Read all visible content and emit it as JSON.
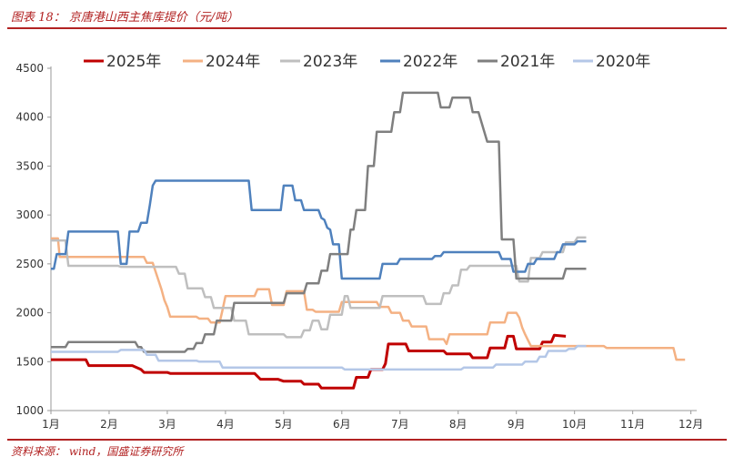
{
  "caption": "图表 18： 京唐港山西主焦库提价（元/吨）",
  "source": "资料来源： wind，国盛证券研究所",
  "chart_data": {
    "type": "line",
    "title": "图表 18： 京唐港山西主焦库提价（元/吨）",
    "xlabel": "",
    "ylabel": "",
    "x_ticks": [
      "1月",
      "2月",
      "3月",
      "4月",
      "5月",
      "6月",
      "7月",
      "8月",
      "9月",
      "10月",
      "11月",
      "12月"
    ],
    "y_ticks": [
      "1000",
      "1500",
      "2000",
      "2500",
      "3000",
      "3500",
      "4000",
      "4500"
    ],
    "ylim": [
      1000,
      4500
    ],
    "xlim": [
      1,
      12.1
    ],
    "grid": false,
    "legend_position": "top",
    "series": [
      {
        "name": "2025年",
        "color": "#c00000",
        "points": [
          [
            1.0,
            1520
          ],
          [
            1.6,
            1520
          ],
          [
            1.65,
            1460
          ],
          [
            2.4,
            1460
          ],
          [
            2.55,
            1420
          ],
          [
            2.6,
            1390
          ],
          [
            3.0,
            1390
          ],
          [
            3.05,
            1380
          ],
          [
            4.5,
            1380
          ],
          [
            4.6,
            1320
          ],
          [
            4.9,
            1320
          ],
          [
            5.0,
            1300
          ],
          [
            5.3,
            1300
          ],
          [
            5.35,
            1270
          ],
          [
            5.6,
            1270
          ],
          [
            5.65,
            1230
          ],
          [
            6.2,
            1230
          ],
          [
            6.25,
            1340
          ],
          [
            6.45,
            1340
          ],
          [
            6.5,
            1420
          ],
          [
            6.7,
            1420
          ],
          [
            6.75,
            1480
          ],
          [
            6.8,
            1680
          ],
          [
            7.1,
            1680
          ],
          [
            7.15,
            1610
          ],
          [
            7.75,
            1610
          ],
          [
            7.8,
            1580
          ],
          [
            8.2,
            1580
          ],
          [
            8.25,
            1540
          ],
          [
            8.5,
            1540
          ],
          [
            8.55,
            1640
          ],
          [
            8.8,
            1640
          ],
          [
            8.85,
            1760
          ],
          [
            8.95,
            1760
          ],
          [
            9.0,
            1630
          ],
          [
            9.4,
            1630
          ],
          [
            9.45,
            1700
          ],
          [
            9.6,
            1700
          ],
          [
            9.65,
            1770
          ],
          [
            9.85,
            1760
          ]
        ]
      },
      {
        "name": "2024年",
        "color": "#f4b183",
        "points": [
          [
            1.0,
            2760
          ],
          [
            1.12,
            2760
          ],
          [
            1.15,
            2570
          ],
          [
            2.6,
            2570
          ],
          [
            2.65,
            2510
          ],
          [
            2.75,
            2510
          ],
          [
            2.8,
            2420
          ],
          [
            2.85,
            2330
          ],
          [
            2.9,
            2240
          ],
          [
            2.95,
            2130
          ],
          [
            3.0,
            2060
          ],
          [
            3.05,
            1960
          ],
          [
            3.5,
            1960
          ],
          [
            3.55,
            1940
          ],
          [
            3.7,
            1940
          ],
          [
            3.75,
            1900
          ],
          [
            3.9,
            1900
          ],
          [
            3.95,
            2030
          ],
          [
            4.0,
            2170
          ],
          [
            4.5,
            2170
          ],
          [
            4.55,
            2240
          ],
          [
            4.75,
            2240
          ],
          [
            4.8,
            2080
          ],
          [
            5.0,
            2080
          ],
          [
            5.05,
            2220
          ],
          [
            5.35,
            2220
          ],
          [
            5.4,
            2030
          ],
          [
            5.5,
            2030
          ],
          [
            5.55,
            2010
          ],
          [
            5.95,
            2010
          ],
          [
            6.0,
            2110
          ],
          [
            6.6,
            2110
          ],
          [
            6.65,
            2060
          ],
          [
            6.8,
            2060
          ],
          [
            6.85,
            2000
          ],
          [
            7.0,
            2000
          ],
          [
            7.05,
            1920
          ],
          [
            7.15,
            1920
          ],
          [
            7.2,
            1860
          ],
          [
            7.45,
            1860
          ],
          [
            7.5,
            1730
          ],
          [
            7.75,
            1730
          ],
          [
            7.8,
            1680
          ],
          [
            7.85,
            1780
          ],
          [
            8.5,
            1780
          ],
          [
            8.55,
            1900
          ],
          [
            8.8,
            1900
          ],
          [
            8.85,
            2000
          ],
          [
            9.0,
            2000
          ],
          [
            9.05,
            1950
          ],
          [
            9.1,
            1850
          ],
          [
            9.15,
            1780
          ],
          [
            9.2,
            1720
          ],
          [
            9.25,
            1660
          ],
          [
            10.5,
            1660
          ],
          [
            10.55,
            1640
          ],
          [
            11.7,
            1640
          ],
          [
            11.75,
            1520
          ],
          [
            11.9,
            1520
          ]
        ]
      },
      {
        "name": "2023年",
        "color": "#bfbfbf",
        "points": [
          [
            1.0,
            2740
          ],
          [
            1.25,
            2740
          ],
          [
            1.3,
            2480
          ],
          [
            2.15,
            2480
          ],
          [
            2.2,
            2470
          ],
          [
            3.15,
            2470
          ],
          [
            3.2,
            2400
          ],
          [
            3.3,
            2400
          ],
          [
            3.35,
            2250
          ],
          [
            3.6,
            2250
          ],
          [
            3.65,
            2160
          ],
          [
            3.75,
            2160
          ],
          [
            3.8,
            2050
          ],
          [
            4.1,
            2050
          ],
          [
            4.15,
            1920
          ],
          [
            4.35,
            1920
          ],
          [
            4.4,
            1780
          ],
          [
            5.0,
            1780
          ],
          [
            5.05,
            1750
          ],
          [
            5.3,
            1750
          ],
          [
            5.35,
            1820
          ],
          [
            5.45,
            1820
          ],
          [
            5.5,
            1920
          ],
          [
            5.6,
            1920
          ],
          [
            5.65,
            1830
          ],
          [
            5.75,
            1830
          ],
          [
            5.8,
            1980
          ],
          [
            6.0,
            1980
          ],
          [
            6.05,
            2170
          ],
          [
            6.1,
            2170
          ],
          [
            6.15,
            2050
          ],
          [
            6.65,
            2050
          ],
          [
            6.7,
            2170
          ],
          [
            7.4,
            2170
          ],
          [
            7.45,
            2090
          ],
          [
            7.7,
            2090
          ],
          [
            7.75,
            2200
          ],
          [
            7.85,
            2200
          ],
          [
            7.9,
            2280
          ],
          [
            8.0,
            2280
          ],
          [
            8.05,
            2440
          ],
          [
            8.15,
            2440
          ],
          [
            8.2,
            2480
          ],
          [
            9.0,
            2480
          ],
          [
            9.05,
            2320
          ],
          [
            9.2,
            2320
          ],
          [
            9.25,
            2560
          ],
          [
            9.4,
            2560
          ],
          [
            9.45,
            2620
          ],
          [
            9.8,
            2620
          ],
          [
            9.85,
            2720
          ],
          [
            10.0,
            2720
          ],
          [
            10.05,
            2770
          ],
          [
            10.2,
            2770
          ]
        ]
      },
      {
        "name": "2022年",
        "color": "#4f81bd",
        "points": [
          [
            1.0,
            2450
          ],
          [
            1.05,
            2450
          ],
          [
            1.1,
            2600
          ],
          [
            1.25,
            2600
          ],
          [
            1.3,
            2830
          ],
          [
            2.15,
            2830
          ],
          [
            2.2,
            2500
          ],
          [
            2.3,
            2500
          ],
          [
            2.35,
            2830
          ],
          [
            2.5,
            2830
          ],
          [
            2.55,
            2920
          ],
          [
            2.65,
            2920
          ],
          [
            2.7,
            3100
          ],
          [
            2.75,
            3300
          ],
          [
            2.8,
            3350
          ],
          [
            4.4,
            3350
          ],
          [
            4.45,
            3050
          ],
          [
            4.95,
            3050
          ],
          [
            5.0,
            3300
          ],
          [
            5.15,
            3300
          ],
          [
            5.2,
            3150
          ],
          [
            5.3,
            3150
          ],
          [
            5.35,
            3050
          ],
          [
            5.6,
            3050
          ],
          [
            5.65,
            2970
          ],
          [
            5.7,
            2950
          ],
          [
            5.75,
            2870
          ],
          [
            5.8,
            2850
          ],
          [
            5.85,
            2700
          ],
          [
            5.95,
            2700
          ],
          [
            6.0,
            2350
          ],
          [
            6.65,
            2350
          ],
          [
            6.7,
            2500
          ],
          [
            6.95,
            2500
          ],
          [
            7.0,
            2550
          ],
          [
            7.55,
            2550
          ],
          [
            7.6,
            2580
          ],
          [
            7.7,
            2580
          ],
          [
            7.75,
            2620
          ],
          [
            8.7,
            2620
          ],
          [
            8.75,
            2550
          ],
          [
            8.9,
            2550
          ],
          [
            8.95,
            2420
          ],
          [
            9.15,
            2420
          ],
          [
            9.2,
            2500
          ],
          [
            9.3,
            2500
          ],
          [
            9.35,
            2550
          ],
          [
            9.65,
            2550
          ],
          [
            9.7,
            2620
          ],
          [
            9.75,
            2620
          ],
          [
            9.8,
            2700
          ],
          [
            10.0,
            2700
          ],
          [
            10.05,
            2730
          ],
          [
            10.2,
            2730
          ]
        ]
      },
      {
        "name": "2021年",
        "color": "#7f7f7f",
        "points": [
          [
            1.0,
            1650
          ],
          [
            1.25,
            1650
          ],
          [
            1.3,
            1700
          ],
          [
            2.45,
            1700
          ],
          [
            2.5,
            1650
          ],
          [
            2.55,
            1650
          ],
          [
            2.6,
            1600
          ],
          [
            3.3,
            1600
          ],
          [
            3.35,
            1630
          ],
          [
            3.45,
            1630
          ],
          [
            3.5,
            1690
          ],
          [
            3.6,
            1690
          ],
          [
            3.65,
            1780
          ],
          [
            3.8,
            1780
          ],
          [
            3.85,
            1920
          ],
          [
            4.1,
            1920
          ],
          [
            4.15,
            2100
          ],
          [
            5.0,
            2100
          ],
          [
            5.05,
            2200
          ],
          [
            5.35,
            2200
          ],
          [
            5.4,
            2300
          ],
          [
            5.6,
            2300
          ],
          [
            5.65,
            2430
          ],
          [
            5.75,
            2430
          ],
          [
            5.8,
            2600
          ],
          [
            6.1,
            2600
          ],
          [
            6.15,
            2850
          ],
          [
            6.2,
            2850
          ],
          [
            6.25,
            3050
          ],
          [
            6.4,
            3050
          ],
          [
            6.45,
            3500
          ],
          [
            6.55,
            3500
          ],
          [
            6.6,
            3850
          ],
          [
            6.85,
            3850
          ],
          [
            6.9,
            4050
          ],
          [
            7.0,
            4050
          ],
          [
            7.05,
            4250
          ],
          [
            7.65,
            4250
          ],
          [
            7.7,
            4100
          ],
          [
            7.85,
            4100
          ],
          [
            7.9,
            4200
          ],
          [
            8.2,
            4200
          ],
          [
            8.25,
            4050
          ],
          [
            8.35,
            4050
          ],
          [
            8.4,
            3950
          ],
          [
            8.5,
            3750
          ],
          [
            8.7,
            3750
          ],
          [
            8.75,
            2750
          ],
          [
            8.95,
            2750
          ],
          [
            9.0,
            2350
          ],
          [
            9.8,
            2350
          ],
          [
            9.85,
            2450
          ],
          [
            10.2,
            2450
          ]
        ]
      },
      {
        "name": "2020年",
        "color": "#b4c7e7",
        "points": [
          [
            1.0,
            1600
          ],
          [
            2.15,
            1600
          ],
          [
            2.2,
            1620
          ],
          [
            2.6,
            1620
          ],
          [
            2.65,
            1570
          ],
          [
            2.8,
            1570
          ],
          [
            2.85,
            1510
          ],
          [
            3.5,
            1510
          ],
          [
            3.55,
            1500
          ],
          [
            3.9,
            1500
          ],
          [
            3.95,
            1440
          ],
          [
            6.0,
            1440
          ],
          [
            6.05,
            1420
          ],
          [
            8.05,
            1420
          ],
          [
            8.1,
            1440
          ],
          [
            8.6,
            1440
          ],
          [
            8.65,
            1470
          ],
          [
            9.1,
            1470
          ],
          [
            9.15,
            1500
          ],
          [
            9.35,
            1500
          ],
          [
            9.4,
            1550
          ],
          [
            9.5,
            1550
          ],
          [
            9.55,
            1610
          ],
          [
            9.85,
            1610
          ],
          [
            9.9,
            1630
          ],
          [
            10.0,
            1630
          ],
          [
            10.05,
            1660
          ],
          [
            10.2,
            1660
          ]
        ]
      }
    ]
  }
}
